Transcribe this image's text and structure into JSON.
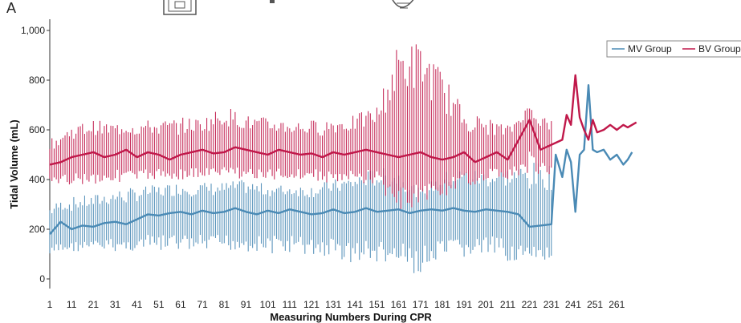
{
  "panel_label": "A",
  "colors": {
    "mv": "#4a8ab5",
    "bv": "#c0184a",
    "axis": "#333333"
  },
  "chart_data": {
    "type": "line",
    "title": "",
    "xlabel": "Measuring Numbers During CPR",
    "ylabel": "Tidal Volume (mL)",
    "xlim": [
      1,
      269
    ],
    "ylim": [
      0,
      1000
    ],
    "x_ticks": [
      1,
      11,
      21,
      31,
      41,
      51,
      61,
      71,
      81,
      91,
      101,
      111,
      121,
      131,
      141,
      151,
      161,
      171,
      181,
      191,
      201,
      211,
      221,
      231,
      241,
      251,
      261
    ],
    "y_ticks": [
      0,
      200,
      400,
      600,
      800,
      1000
    ],
    "y_tick_labels": [
      "0",
      "200",
      "400",
      "600",
      "800",
      "1,000"
    ],
    "legend": {
      "position": "top-right",
      "entries": [
        "MV Group",
        "BV Group"
      ]
    },
    "series": [
      {
        "name": "MV Group",
        "color": "#4a8ab5",
        "mean": [
          [
            1,
            180
          ],
          [
            6,
            230
          ],
          [
            11,
            200
          ],
          [
            16,
            215
          ],
          [
            21,
            210
          ],
          [
            26,
            225
          ],
          [
            31,
            230
          ],
          [
            36,
            220
          ],
          [
            41,
            240
          ],
          [
            46,
            260
          ],
          [
            51,
            255
          ],
          [
            56,
            265
          ],
          [
            61,
            270
          ],
          [
            66,
            260
          ],
          [
            71,
            275
          ],
          [
            76,
            265
          ],
          [
            81,
            270
          ],
          [
            86,
            285
          ],
          [
            91,
            270
          ],
          [
            96,
            260
          ],
          [
            101,
            275
          ],
          [
            106,
            265
          ],
          [
            111,
            280
          ],
          [
            116,
            270
          ],
          [
            121,
            260
          ],
          [
            126,
            265
          ],
          [
            131,
            280
          ],
          [
            136,
            265
          ],
          [
            141,
            270
          ],
          [
            146,
            285
          ],
          [
            151,
            270
          ],
          [
            156,
            275
          ],
          [
            161,
            280
          ],
          [
            166,
            265
          ],
          [
            171,
            275
          ],
          [
            176,
            280
          ],
          [
            181,
            275
          ],
          [
            186,
            285
          ],
          [
            191,
            275
          ],
          [
            196,
            270
          ],
          [
            201,
            280
          ],
          [
            206,
            275
          ],
          [
            211,
            270
          ],
          [
            216,
            260
          ],
          [
            221,
            210
          ],
          [
            226,
            215
          ],
          [
            231,
            220
          ],
          [
            233,
            500
          ],
          [
            236,
            410
          ],
          [
            238,
            520
          ],
          [
            240,
            470
          ],
          [
            242,
            270
          ],
          [
            244,
            500
          ],
          [
            246,
            520
          ],
          [
            248,
            780
          ],
          [
            250,
            520
          ],
          [
            252,
            510
          ],
          [
            255,
            520
          ],
          [
            258,
            480
          ],
          [
            261,
            500
          ],
          [
            264,
            460
          ],
          [
            266,
            480
          ],
          [
            268,
            510
          ]
        ],
        "band": [
          [
            1,
            80,
            300
          ],
          [
            11,
            110,
            330
          ],
          [
            21,
            110,
            340
          ],
          [
            31,
            110,
            360
          ],
          [
            41,
            110,
            370
          ],
          [
            51,
            110,
            380
          ],
          [
            61,
            110,
            390
          ],
          [
            71,
            100,
            390
          ],
          [
            81,
            110,
            390
          ],
          [
            91,
            110,
            400
          ],
          [
            101,
            100,
            380
          ],
          [
            111,
            100,
            380
          ],
          [
            121,
            90,
            380
          ],
          [
            131,
            80,
            400
          ],
          [
            141,
            60,
            420
          ],
          [
            151,
            60,
            450
          ],
          [
            161,
            40,
            440
          ],
          [
            171,
            10,
            360
          ],
          [
            181,
            60,
            430
          ],
          [
            191,
            80,
            450
          ],
          [
            201,
            90,
            440
          ],
          [
            211,
            70,
            450
          ],
          [
            221,
            60,
            470
          ],
          [
            231,
            70,
            470
          ]
        ]
      },
      {
        "name": "BV Group",
        "color": "#c0184a",
        "mean": [
          [
            1,
            460
          ],
          [
            6,
            470
          ],
          [
            11,
            490
          ],
          [
            16,
            500
          ],
          [
            21,
            510
          ],
          [
            26,
            490
          ],
          [
            31,
            500
          ],
          [
            36,
            520
          ],
          [
            41,
            490
          ],
          [
            46,
            510
          ],
          [
            51,
            500
          ],
          [
            56,
            480
          ],
          [
            61,
            500
          ],
          [
            66,
            510
          ],
          [
            71,
            520
          ],
          [
            76,
            505
          ],
          [
            81,
            510
          ],
          [
            86,
            530
          ],
          [
            91,
            520
          ],
          [
            96,
            510
          ],
          [
            101,
            500
          ],
          [
            106,
            520
          ],
          [
            111,
            510
          ],
          [
            116,
            500
          ],
          [
            121,
            505
          ],
          [
            126,
            490
          ],
          [
            131,
            510
          ],
          [
            136,
            500
          ],
          [
            141,
            510
          ],
          [
            146,
            520
          ],
          [
            151,
            510
          ],
          [
            156,
            500
          ],
          [
            161,
            490
          ],
          [
            166,
            500
          ],
          [
            171,
            510
          ],
          [
            176,
            490
          ],
          [
            181,
            480
          ],
          [
            186,
            490
          ],
          [
            191,
            510
          ],
          [
            196,
            470
          ],
          [
            201,
            490
          ],
          [
            206,
            510
          ],
          [
            211,
            480
          ],
          [
            216,
            560
          ],
          [
            221,
            640
          ],
          [
            226,
            520
          ],
          [
            231,
            540
          ],
          [
            236,
            560
          ],
          [
            238,
            660
          ],
          [
            240,
            620
          ],
          [
            242,
            820
          ],
          [
            244,
            650
          ],
          [
            246,
            600
          ],
          [
            248,
            560
          ],
          [
            250,
            640
          ],
          [
            252,
            590
          ],
          [
            255,
            600
          ],
          [
            258,
            620
          ],
          [
            261,
            600
          ],
          [
            264,
            620
          ],
          [
            266,
            610
          ],
          [
            268,
            620
          ],
          [
            270,
            630
          ]
        ],
        "band": [
          [
            1,
            360,
            560
          ],
          [
            11,
            380,
            620
          ],
          [
            21,
            380,
            640
          ],
          [
            31,
            390,
            630
          ],
          [
            41,
            390,
            640
          ],
          [
            51,
            400,
            640
          ],
          [
            61,
            400,
            650
          ],
          [
            71,
            400,
            650
          ],
          [
            81,
            410,
            700
          ],
          [
            91,
            400,
            660
          ],
          [
            101,
            390,
            650
          ],
          [
            111,
            400,
            640
          ],
          [
            121,
            400,
            640
          ],
          [
            131,
            380,
            650
          ],
          [
            141,
            380,
            660
          ],
          [
            151,
            380,
            700
          ],
          [
            161,
            260,
            960
          ],
          [
            171,
            300,
            960
          ],
          [
            181,
            330,
            840
          ],
          [
            191,
            360,
            680
          ],
          [
            201,
            400,
            650
          ],
          [
            211,
            400,
            620
          ],
          [
            221,
            420,
            700
          ],
          [
            231,
            420,
            640
          ]
        ]
      }
    ]
  }
}
